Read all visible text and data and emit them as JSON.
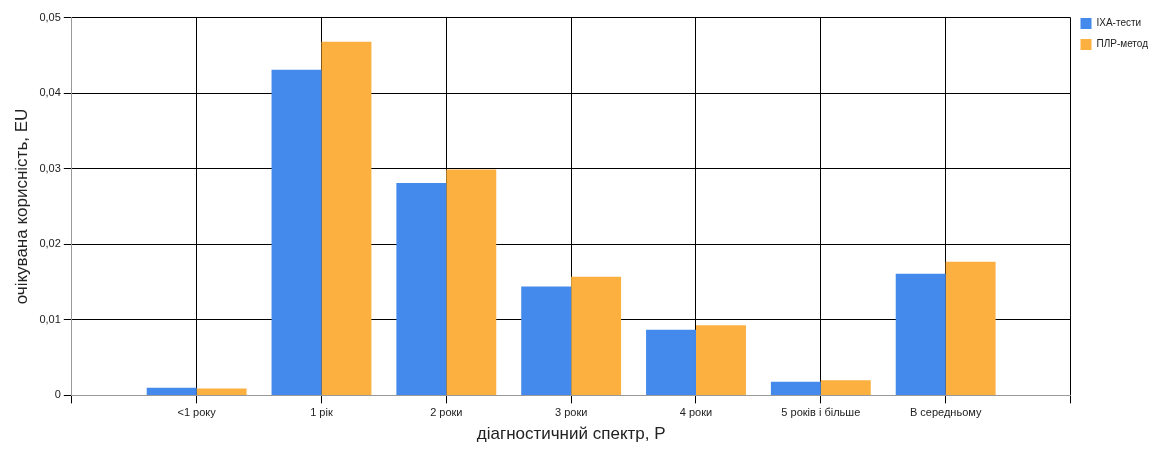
{
  "chart_data": {
    "type": "bar",
    "xlabel": "діагностичний спектр, P",
    "ylabel": "очікувана корисність, EU",
    "categories": [
      null,
      "<1 року",
      "1 рік",
      "2 роки",
      "3 роки",
      "4 роки",
      "5 років і більше",
      "В середньому",
      null
    ],
    "series": [
      {
        "name": "ІХА-тести",
        "color": "#448aec",
        "values": [
          null,
          0.001,
          0.0431,
          0.0281,
          0.0144,
          0.0087,
          0.0018,
          0.0161,
          null
        ]
      },
      {
        "name": "ПЛР-метод",
        "color": "#fbb040",
        "values": [
          null,
          0.0009,
          0.0468,
          0.0299,
          0.0157,
          0.0093,
          0.002,
          0.0177,
          null
        ]
      }
    ],
    "ylim": [
      0,
      0.05
    ],
    "yticks": [
      0,
      {
        "value": 0.01,
        "label": "0,01"
      },
      {
        "value": 0.02,
        "label": "0,02"
      },
      {
        "value": 0.03,
        "label": "0,03"
      },
      {
        "value": 0.04,
        "label": "0,04"
      },
      {
        "value": 0.05,
        "label": "0,05"
      }
    ],
    "grid": true,
    "legend": "top right"
  }
}
